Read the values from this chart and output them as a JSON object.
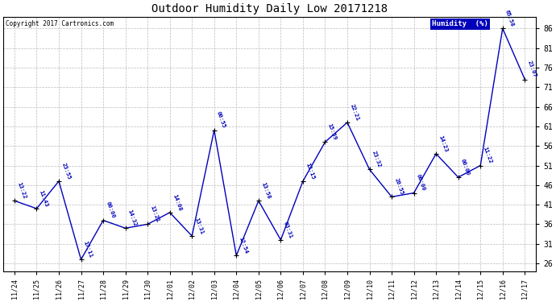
{
  "title": "Outdoor Humidity Daily Low 20171218",
  "copyright": "Copyright 2017 Cartronics.com",
  "legend_label": "Humidity  (%)",
  "line_color": "#0000bb",
  "marker_color": "#000000",
  "bg_color": "#ffffff",
  "grid_color": "#bbbbbb",
  "dates": [
    "11/24",
    "11/25",
    "11/26",
    "11/27",
    "11/28",
    "11/29",
    "11/30",
    "12/01",
    "12/02",
    "12/03",
    "12/04",
    "12/05",
    "12/06",
    "12/07",
    "12/08",
    "12/09",
    "12/10",
    "12/11",
    "12/12",
    "12/13",
    "12/14",
    "12/15",
    "12/16",
    "12/17"
  ],
  "values": [
    42,
    40,
    47,
    27,
    37,
    35,
    36,
    39,
    33,
    60,
    28,
    42,
    32,
    47,
    57,
    62,
    50,
    43,
    44,
    54,
    48,
    51,
    86,
    73
  ],
  "labels": [
    "13:22",
    "11:43",
    "23:55",
    "17:11",
    "00:00",
    "14:32",
    "13:21",
    "14:08",
    "13:31",
    "00:55",
    "12:54",
    "13:58",
    "03:31",
    "13:15",
    "15:59",
    "22:21",
    "23:32",
    "20:55",
    "00:00",
    "14:23",
    "00:00",
    "11:22",
    "65:58",
    "23:07"
  ],
  "ylim": [
    24,
    89
  ],
  "yticks": [
    26,
    31,
    36,
    41,
    46,
    51,
    56,
    61,
    66,
    71,
    76,
    81,
    86
  ]
}
